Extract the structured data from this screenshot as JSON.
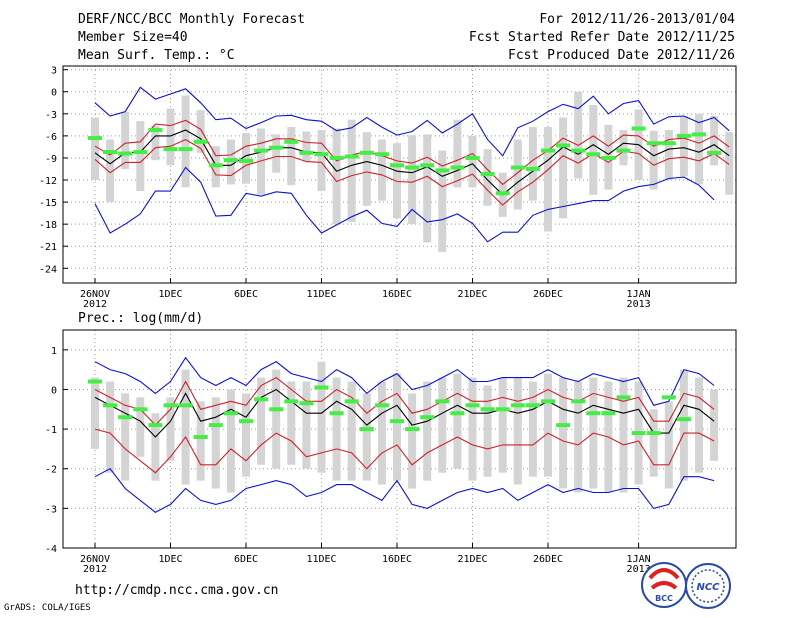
{
  "header": {
    "title": "DERF/NCC/BCC Monthly Forecast",
    "member_size": "Member Size=40",
    "variable": "Mean Surf. Temp.: °C",
    "forecast_period": "For 2012/11/26-2013/01/04",
    "start_date": "Fcst Started Refer Date 2012/11/25",
    "produced_date": "Fcst Produced Date 2012/11/26"
  },
  "footer": {
    "url": "http://cmdp.ncc.cma.gov.cn",
    "grads": "GrADS: COLA/IGES",
    "logo_bcc": "BCC",
    "logo_ncc": "NCC"
  },
  "colors": {
    "mean": "#000000",
    "inner": "#d0202a",
    "outer": "#1010d0",
    "box": "#d4d4d4",
    "obs": "#44ee44"
  },
  "chart_data": [
    {
      "type": "line",
      "title": "Mean Surf. Temp.: °C",
      "x_tick_labels": [
        "26NOV",
        "1DEC",
        "6DEC",
        "11DEC",
        "16DEC",
        "21DEC",
        "26DEC",
        "1JAN"
      ],
      "x_tick_days": [
        0,
        5,
        10,
        15,
        20,
        25,
        30,
        36
      ],
      "year_labels": [
        {
          "day": 0,
          "label": "2012"
        },
        {
          "day": 36,
          "label": "2013"
        }
      ],
      "ylim": [
        -26,
        3.5
      ],
      "y_ticks": [
        3,
        0,
        -3,
        -6,
        -9,
        -12,
        -15,
        -18,
        -21,
        -24
      ],
      "series": [
        {
          "name": "ensemble mean",
          "values": [
            -8.3,
            -9.8,
            -8.3,
            -8.2,
            -6.0,
            -6.0,
            -5.2,
            -6.4,
            -10.0,
            -10.0,
            -8.7,
            -8.2,
            -7.6,
            -7.6,
            -8.2,
            -8.3,
            -10.8,
            -10.0,
            -9.5,
            -10.0,
            -10.8,
            -11.0,
            -10.2,
            -11.5,
            -10.7,
            -9.8,
            -12.0,
            -14.0,
            -12.3,
            -10.8,
            -9.3,
            -7.5,
            -8.5,
            -7.2,
            -8.5,
            -7.0,
            -7.2,
            -8.7,
            -7.8,
            -7.6,
            -8.2,
            -7.2,
            -8.7
          ]
        },
        {
          "name": "upper inner",
          "values": [
            -7.4,
            -8.6,
            -7.0,
            -6.8,
            -4.4,
            -4.6,
            -3.9,
            -5.1,
            -8.7,
            -8.6,
            -7.4,
            -7.0,
            -6.4,
            -6.4,
            -6.9,
            -7.0,
            -9.4,
            -8.6,
            -8.1,
            -8.7,
            -9.4,
            -9.7,
            -8.9,
            -10.1,
            -9.3,
            -8.4,
            -10.6,
            -12.6,
            -11.0,
            -9.3,
            -8.0,
            -6.3,
            -7.3,
            -6.0,
            -7.4,
            -5.9,
            -6.0,
            -7.4,
            -6.5,
            -6.3,
            -7.0,
            -6.0,
            -7.5
          ]
        },
        {
          "name": "lower inner",
          "values": [
            -9.2,
            -11.0,
            -9.6,
            -9.6,
            -7.6,
            -7.4,
            -6.5,
            -7.7,
            -11.3,
            -11.4,
            -10.0,
            -9.4,
            -8.8,
            -8.8,
            -9.5,
            -9.6,
            -12.2,
            -11.4,
            -10.9,
            -11.3,
            -12.2,
            -12.3,
            -11.5,
            -12.9,
            -12.1,
            -11.2,
            -13.4,
            -15.4,
            -13.6,
            -12.3,
            -10.6,
            -8.7,
            -9.7,
            -8.4,
            -9.6,
            -8.1,
            -8.4,
            -10.0,
            -9.1,
            -8.9,
            -9.4,
            -8.4,
            -9.9
          ]
        },
        {
          "name": "upper outer",
          "values": [
            -1.5,
            -3.3,
            -2.7,
            0.6,
            -1.0,
            -0.3,
            0.4,
            -1.5,
            -3.8,
            -3.6,
            -5.0,
            -4.2,
            -3.3,
            -3.2,
            -3.8,
            -4.0,
            -5.3,
            -4.9,
            -3.5,
            -4.8,
            -5.9,
            -5.4,
            -3.9,
            -5.6,
            -4.4,
            -3.0,
            -6.5,
            -8.7,
            -4.9,
            -4.0,
            -2.7,
            -1.7,
            -2.3,
            -0.6,
            -3.0,
            -1.6,
            -1.2,
            -4.4,
            -3.4,
            -3.3,
            -4.2,
            -3.5,
            -5.3
          ]
        },
        {
          "name": "lower outer",
          "values": [
            -15.2,
            -19.2,
            -18.0,
            -16.6,
            -13.5,
            -13.5,
            -10.3,
            -12.3,
            -16.9,
            -16.8,
            -13.8,
            -14.2,
            -13.6,
            -13.8,
            -16.8,
            -19.2,
            -18.1,
            -17.0,
            -16.1,
            -17.9,
            -18.3,
            -16.0,
            -17.7,
            -17.4,
            -16.6,
            -17.9,
            -20.4,
            -19.1,
            -19.1,
            -16.8,
            -16.0,
            -15.6,
            -15.2,
            -14.8,
            -14.8,
            -13.5,
            -12.9,
            -12.6,
            -11.8,
            -11.6,
            -12.7,
            -14.7
          ]
        },
        {
          "name": "box max",
          "values": [
            -3.5,
            -6.5,
            -2.7,
            -4.0,
            -4.6,
            -2.3,
            -0.5,
            -2.5,
            -7.4,
            -6.5,
            -5.6,
            -5.0,
            -5.8,
            -4.8,
            -5.4,
            -5.2,
            -5.0,
            -3.8,
            -5.5,
            -6.5,
            -7.0,
            -5.9,
            -5.8,
            -8.0,
            -3.8,
            -6.0,
            -7.8,
            -11.0,
            -6.5,
            -4.8,
            -4.8,
            -3.5,
            0.0,
            -1.8,
            -4.5,
            -5.2,
            -2.4,
            -5.3,
            -5.2,
            -3.3,
            -3.0,
            -3.3,
            -5.5
          ]
        },
        {
          "name": "box min",
          "values": [
            -12.0,
            -15.0,
            -10.5,
            -13.5,
            -9.3,
            -10.0,
            -13.0,
            -8.3,
            -13.0,
            -12.6,
            -12.5,
            -14.0,
            -11.0,
            -12.7,
            -9.5,
            -13.5,
            -18.0,
            -17.7,
            -15.5,
            -14.8,
            -17.2,
            -18.0,
            -20.5,
            -21.8,
            -13.0,
            -13.0,
            -15.5,
            -17.0,
            -16.0,
            -14.8,
            -19.0,
            -17.2,
            -11.8,
            -14.0,
            -13.3,
            -10.0,
            -12.0,
            -13.3,
            -12.0,
            -11.5,
            -12.6,
            -10.0,
            -14.0
          ]
        },
        {
          "name": "observed",
          "values": [
            -6.3,
            -8.2,
            -8.4,
            -8.2,
            -5.2,
            -7.8,
            -7.8,
            -6.8,
            -10.0,
            -9.3,
            -9.4,
            -8.0,
            -7.6,
            -6.8,
            -8.3,
            -8.5,
            -9.0,
            -8.8,
            -8.3,
            -8.5,
            -10.0,
            -10.3,
            -10.0,
            -10.7,
            -10.3,
            -9.0,
            -11.2,
            -13.8,
            -10.3,
            -10.5,
            -8.0,
            -7.3,
            -8.0,
            -8.5,
            -9.0,
            -8.0,
            -5.0,
            -7.0,
            -7.0,
            -6.0,
            -5.8,
            -8.3
          ]
        }
      ]
    },
    {
      "type": "line",
      "title": "Prec.: log(mm/d)",
      "x_tick_labels": [
        "26NOV",
        "1DEC",
        "6DEC",
        "11DEC",
        "16DEC",
        "21DEC",
        "26DEC",
        "1JAN"
      ],
      "x_tick_days": [
        0,
        5,
        10,
        15,
        20,
        25,
        30,
        36
      ],
      "year_labels": [
        {
          "day": 0,
          "label": "2012"
        },
        {
          "day": 36,
          "label": "2013"
        }
      ],
      "ylim": [
        -4,
        1.5
      ],
      "y_ticks": [
        1,
        0,
        -1,
        -2,
        -3,
        -4
      ],
      "series": [
        {
          "name": "ensemble mean",
          "values": [
            -0.2,
            -0.4,
            -0.6,
            -0.8,
            -1.2,
            -0.8,
            -0.1,
            -0.8,
            -0.7,
            -0.5,
            -0.7,
            -0.2,
            0.0,
            -0.3,
            -0.6,
            -0.6,
            -0.3,
            -0.5,
            -0.9,
            -0.6,
            -0.4,
            -0.9,
            -0.8,
            -0.6,
            -0.4,
            -0.6,
            -0.6,
            -0.5,
            -0.6,
            -0.5,
            -0.3,
            -0.5,
            -0.6,
            -0.4,
            -0.5,
            -0.6,
            -0.5,
            -1.1,
            -1.1,
            -0.4,
            -0.5,
            -0.8
          ]
        },
        {
          "name": "upper inner",
          "values": [
            0.0,
            -0.2,
            -0.4,
            -0.5,
            -0.9,
            -0.5,
            0.2,
            -0.5,
            -0.4,
            -0.3,
            -0.4,
            0.1,
            0.3,
            0.0,
            -0.3,
            -0.3,
            0.0,
            -0.2,
            -0.6,
            -0.3,
            -0.1,
            -0.6,
            -0.5,
            -0.3,
            -0.1,
            -0.3,
            -0.3,
            -0.2,
            -0.3,
            -0.2,
            0.0,
            -0.2,
            -0.3,
            -0.1,
            -0.2,
            -0.3,
            -0.2,
            -0.8,
            -0.8,
            -0.1,
            -0.2,
            -0.5
          ]
        },
        {
          "name": "lower inner",
          "values": [
            -1.0,
            -1.1,
            -1.5,
            -1.8,
            -2.1,
            -1.7,
            -1.2,
            -1.9,
            -1.9,
            -1.5,
            -1.8,
            -1.4,
            -1.1,
            -1.3,
            -1.7,
            -1.6,
            -1.5,
            -1.6,
            -2.0,
            -1.6,
            -1.4,
            -1.9,
            -1.6,
            -1.4,
            -1.2,
            -1.4,
            -1.5,
            -1.4,
            -1.4,
            -1.4,
            -1.1,
            -1.3,
            -1.4,
            -1.1,
            -1.2,
            -1.4,
            -1.3,
            -1.9,
            -1.9,
            -1.1,
            -1.1,
            -1.3
          ]
        },
        {
          "name": "upper outer",
          "values": [
            0.7,
            0.5,
            0.4,
            0.2,
            -0.1,
            0.2,
            0.8,
            0.3,
            0.1,
            0.3,
            0.1,
            0.5,
            0.7,
            0.4,
            0.3,
            0.2,
            0.5,
            0.3,
            -0.1,
            0.2,
            0.4,
            0.0,
            0.1,
            0.3,
            0.5,
            0.2,
            0.2,
            0.3,
            0.3,
            0.3,
            0.5,
            0.3,
            0.2,
            0.4,
            0.3,
            0.2,
            0.3,
            -0.4,
            -0.3,
            0.5,
            0.4,
            0.1
          ]
        },
        {
          "name": "lower outer",
          "values": [
            -2.2,
            -2.0,
            -2.5,
            -2.8,
            -3.1,
            -2.9,
            -2.5,
            -2.8,
            -2.9,
            -2.8,
            -2.5,
            -2.4,
            -2.3,
            -2.4,
            -2.7,
            -2.6,
            -2.4,
            -2.4,
            -2.6,
            -2.8,
            -2.3,
            -2.9,
            -3.0,
            -2.8,
            -2.6,
            -2.5,
            -2.6,
            -2.5,
            -2.8,
            -2.6,
            -2.4,
            -2.6,
            -2.5,
            -2.6,
            -2.6,
            -2.5,
            -2.5,
            -3.0,
            -2.9,
            -2.2,
            -2.2,
            -2.3
          ]
        },
        {
          "name": "box max",
          "values": [
            0.3,
            0.2,
            -0.1,
            -0.2,
            -0.6,
            -0.2,
            0.5,
            -0.3,
            -0.2,
            0.0,
            -0.1,
            0.3,
            0.5,
            0.2,
            0.2,
            0.7,
            0.3,
            0.2,
            -0.1,
            0.2,
            0.4,
            -0.1,
            0.2,
            0.3,
            0.4,
            0.3,
            0.1,
            0.3,
            0.3,
            0.2,
            0.4,
            0.3,
            0.2,
            0.3,
            0.2,
            0.3,
            0.2,
            -0.5,
            -0.3,
            0.5,
            0.3,
            0.0
          ]
        },
        {
          "name": "box min",
          "values": [
            -1.5,
            -2.1,
            -2.3,
            -1.7,
            -2.3,
            -1.8,
            -2.4,
            -2.3,
            -2.5,
            -2.6,
            -2.2,
            -1.9,
            -2.0,
            -1.9,
            -2.0,
            -2.1,
            -2.3,
            -2.3,
            -2.3,
            -2.4,
            -2.3,
            -2.5,
            -2.3,
            -2.1,
            -2.0,
            -2.3,
            -2.2,
            -2.1,
            -2.4,
            -2.2,
            -2.2,
            -2.5,
            -2.6,
            -2.5,
            -2.6,
            -2.6,
            -2.4,
            -2.2,
            -2.5,
            -2.3,
            -2.1,
            -1.8
          ]
        },
        {
          "name": "observed",
          "values": [
            0.2,
            -0.4,
            -0.7,
            -0.5,
            -0.9,
            -0.4,
            -0.4,
            -1.2,
            -0.9,
            -0.6,
            -0.8,
            -0.25,
            -0.5,
            -0.3,
            -0.35,
            0.05,
            -0.6,
            -0.3,
            -1.0,
            -0.4,
            -0.8,
            -1.0,
            -0.7,
            -0.3,
            -0.6,
            -0.4,
            -0.5,
            -0.5,
            -0.4,
            -0.4,
            -0.3,
            -0.9,
            -0.3,
            -0.6,
            -0.6,
            -0.2,
            -1.1,
            -1.1,
            -0.2,
            -0.75
          ]
        }
      ]
    }
  ]
}
